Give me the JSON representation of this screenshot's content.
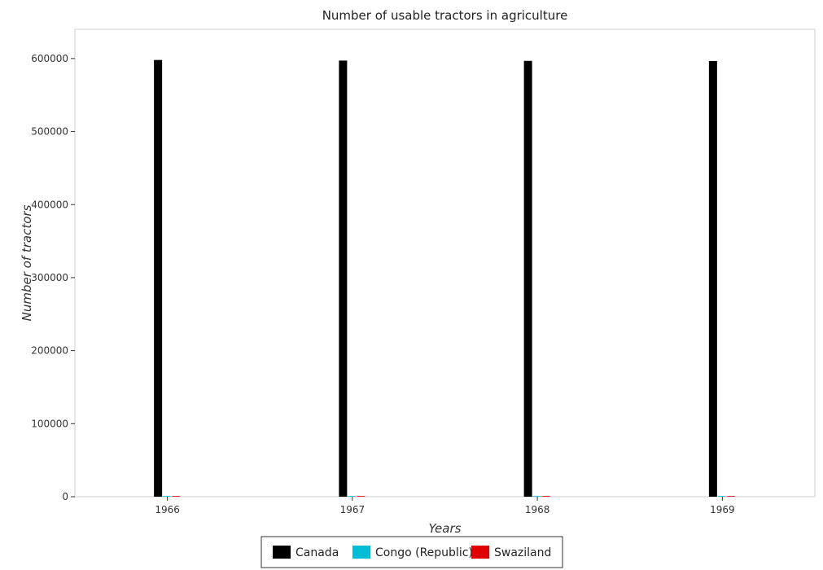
{
  "chart_data": {
    "type": "bar",
    "title": "Number of usable tractors in agriculture",
    "xlabel": "Years",
    "ylabel": "Number of tractors",
    "categories": [
      "1966",
      "1967",
      "1968",
      "1969"
    ],
    "series": [
      {
        "name": "Canada",
        "color": "#000000",
        "values": [
          598000,
          597200,
          596800,
          596600
        ]
      },
      {
        "name": "Congo (Republic)",
        "color": "#00bcd4",
        "values": [
          350,
          400,
          450,
          500
        ]
      },
      {
        "name": "Swaziland",
        "color": "#e00000",
        "values": [
          700,
          750,
          800,
          850
        ]
      }
    ],
    "yticks": [
      0,
      100000,
      200000,
      300000,
      400000,
      500000,
      600000
    ],
    "ytick_labels": [
      "0",
      "100000",
      "200000",
      "300000",
      "400000",
      "500000",
      "600000"
    ],
    "ylim": [
      0,
      640000
    ],
    "grid": false,
    "legend_position": "bottom"
  }
}
